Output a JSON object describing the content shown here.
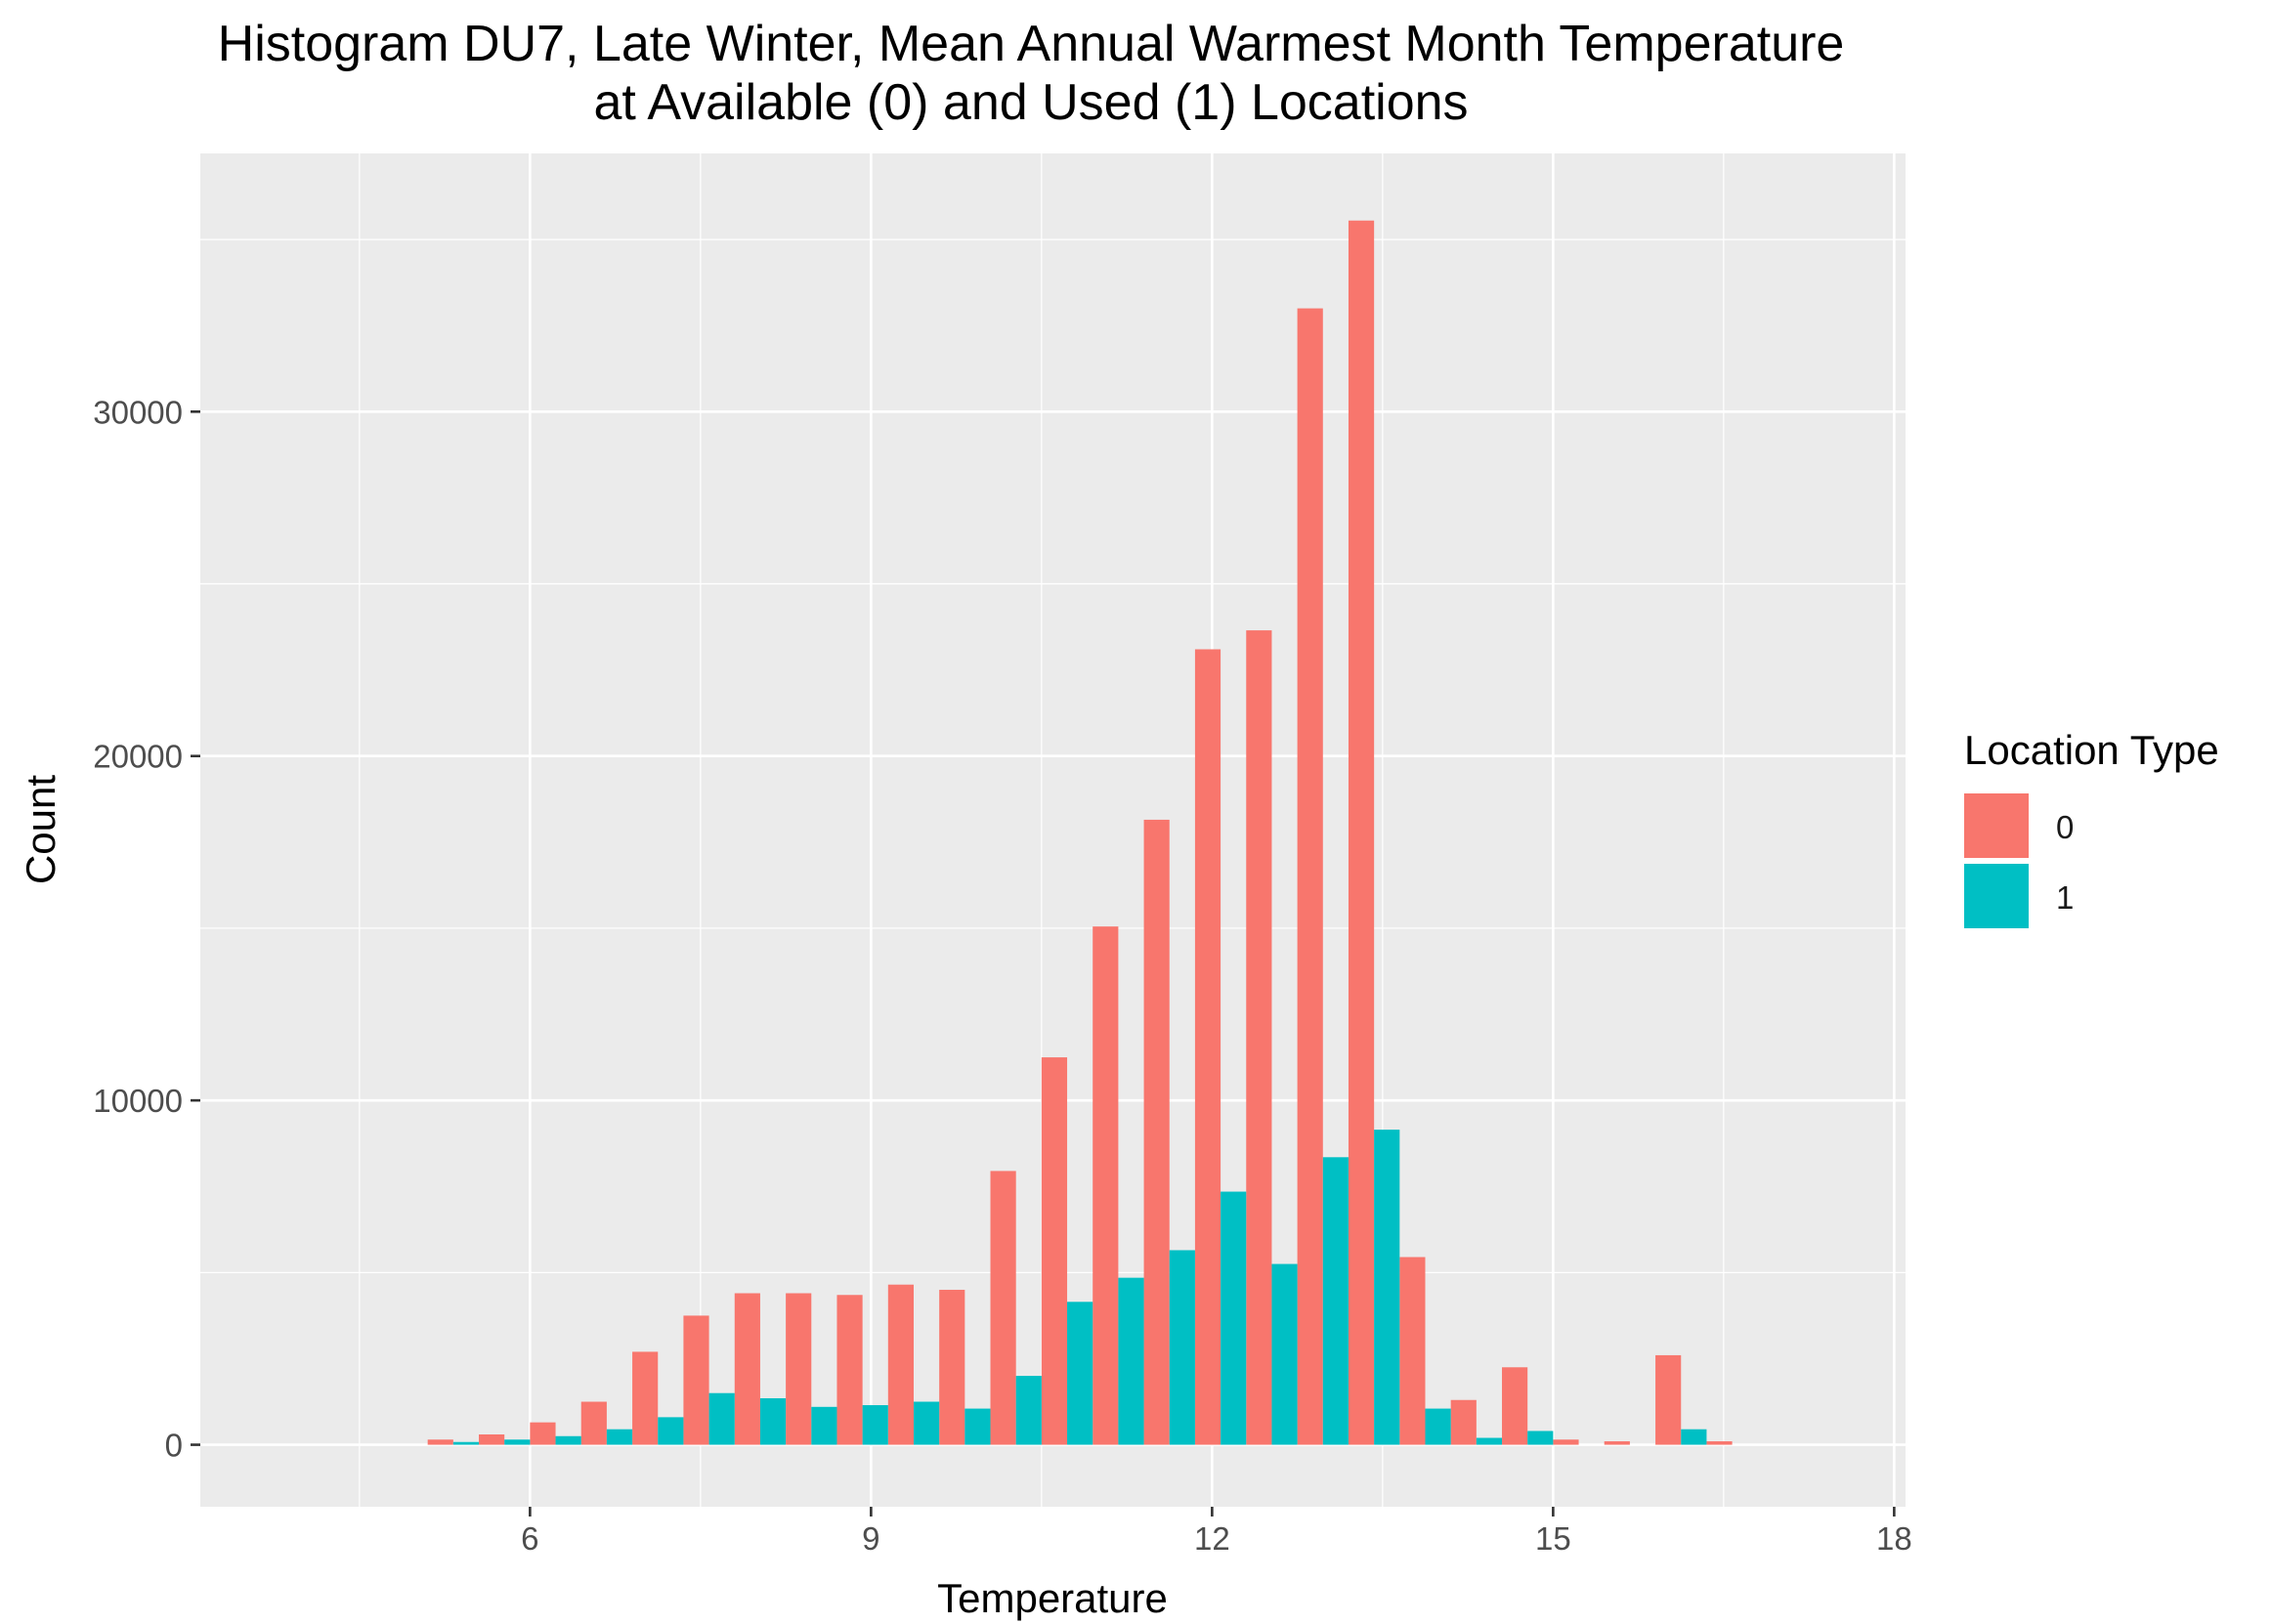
{
  "chart_data": {
    "type": "bar",
    "title": "Histogram DU7, Late Winter, Mean Annual Warmest Month Temperature",
    "subtitle": "at Available (0) and Used (1) Locations",
    "xlabel": "Temperature",
    "ylabel": "Count",
    "xlim": [
      3.1,
      18.1
    ],
    "ylim": [
      -1800,
      37500
    ],
    "x_ticks": [
      6,
      9,
      12,
      15,
      18
    ],
    "x_tick_labels": [
      "6",
      "9",
      "12",
      "15",
      "18"
    ],
    "y_ticks": [
      0,
      10000,
      20000,
      30000
    ],
    "y_tick_labels": [
      "0",
      "10000",
      "20000",
      "30000"
    ],
    "grid": true,
    "bin_width": 0.45,
    "legend": {
      "title": "Location Type",
      "placement": "right"
    },
    "categories": [
      5.325,
      5.775,
      6.225,
      6.675,
      7.125,
      7.575,
      8.025,
      8.475,
      8.925,
      9.375,
      9.825,
      10.275,
      10.725,
      11.175,
      11.625,
      12.075,
      12.525,
      12.975,
      13.425,
      13.875,
      14.325,
      14.775,
      15.225,
      15.675,
      16.125,
      16.575
    ],
    "series": [
      {
        "name": "0",
        "color": "#F8766D",
        "values": [
          150,
          300,
          650,
          1250,
          2700,
          3750,
          4400,
          4400,
          4350,
          4650,
          4500,
          7950,
          11250,
          15050,
          18150,
          23100,
          23650,
          33000,
          35550,
          5450,
          1300,
          2250,
          150,
          100,
          2600,
          100
        ]
      },
      {
        "name": "1",
        "color": "#00BFC4",
        "values": [
          80,
          150,
          250,
          450,
          800,
          1500,
          1350,
          1100,
          1150,
          1250,
          1050,
          2000,
          4150,
          4850,
          5650,
          7350,
          5250,
          8350,
          9150,
          1050,
          200,
          400,
          0,
          0,
          450,
          0
        ]
      }
    ]
  }
}
